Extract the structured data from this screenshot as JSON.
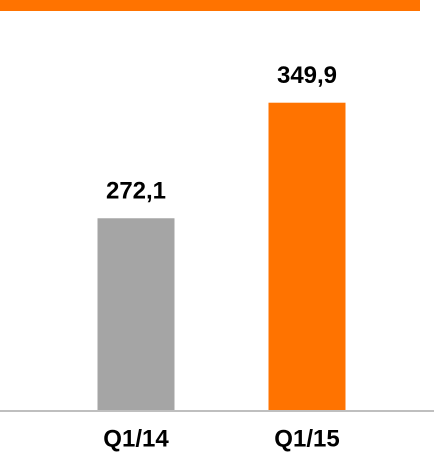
{
  "chart_data": {
    "type": "bar",
    "categories": [
      "Q1/14",
      "Q1/15"
    ],
    "values": [
      272.1,
      349.9
    ],
    "value_labels": [
      "272,1",
      "349,9"
    ],
    "colors": [
      "#a5a5a5",
      "#ff7300"
    ],
    "ylim": [
      143,
      380
    ]
  }
}
